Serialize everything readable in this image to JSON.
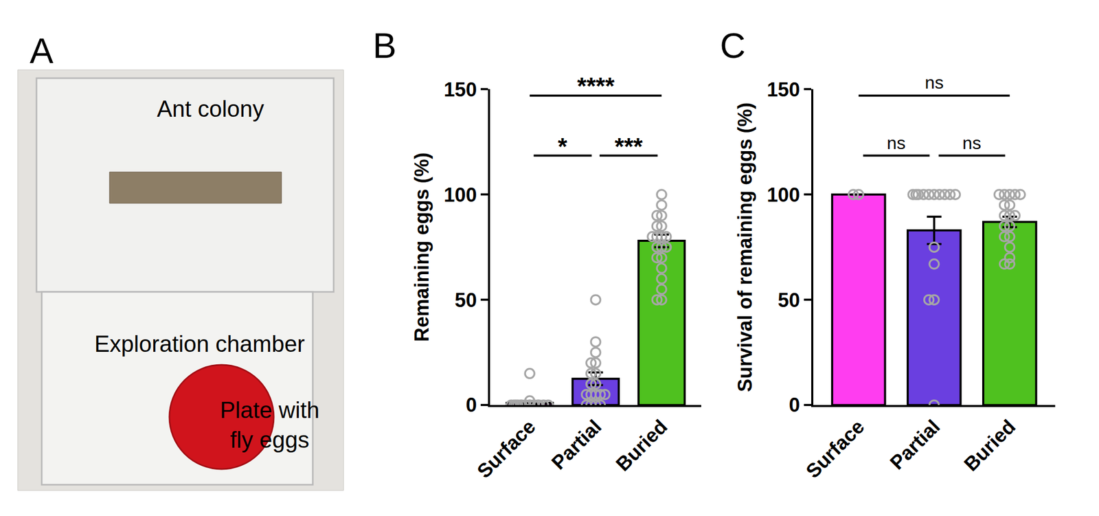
{
  "photo": {
    "panel": "A",
    "labels": [
      {
        "lines": [
          "Ant colony"
        ]
      },
      {
        "lines": [
          "Exploration chamber"
        ]
      },
      {
        "lines": [
          "Plate with",
          "fly eggs"
        ]
      }
    ]
  },
  "chart_data": [
    {
      "type": "bar",
      "panel": "B",
      "y_label": "Remaining eggs (%)",
      "categories": [
        "Surface",
        "Partial",
        "Buried"
      ],
      "colors": [
        "#ff3df0",
        "#6a3fe0",
        "#4fc11f"
      ],
      "values": [
        1,
        12.5,
        78
      ],
      "errors": [
        0.8,
        3,
        3
      ],
      "points": [
        [
          0,
          0,
          0,
          0,
          0,
          0,
          0,
          0,
          0,
          0,
          0,
          0,
          0,
          0,
          0,
          0,
          2,
          15
        ],
        [
          50,
          30,
          25,
          20,
          20,
          15,
          15,
          10,
          10,
          5,
          5,
          5,
          5,
          5,
          0,
          0,
          0,
          0
        ],
        [
          100,
          95,
          90,
          90,
          85,
          85,
          80,
          80,
          80,
          80,
          75,
          75,
          75,
          70,
          70,
          65,
          60,
          55,
          50,
          50
        ]
      ],
      "ylim": [
        0,
        150
      ],
      "yticks": [
        0,
        50,
        100,
        150
      ],
      "comparisons": [
        {
          "from": "Surface",
          "to": "Partial",
          "text": "*"
        },
        {
          "from": "Partial",
          "to": "Buried",
          "text": "***"
        },
        {
          "from": "Surface",
          "to": "Buried",
          "text": "****"
        }
      ]
    },
    {
      "type": "bar",
      "panel": "C",
      "y_label": "Survival of remaining eggs (%)",
      "categories": [
        "Surface",
        "Partial",
        "Buried"
      ],
      "colors": [
        "#ff3df0",
        "#6a3fe0",
        "#4fc11f"
      ],
      "values": [
        100,
        83,
        87
      ],
      "errors": [
        0,
        6.5,
        2.5
      ],
      "points": [
        [
          100,
          100
        ],
        [
          100,
          100,
          100,
          100,
          100,
          100,
          100,
          100,
          100,
          100,
          75,
          67,
          50,
          50,
          0
        ],
        [
          100,
          100,
          100,
          100,
          100,
          95,
          95,
          90,
          90,
          90,
          85,
          85,
          80,
          80,
          75,
          70,
          67,
          67
        ]
      ],
      "ylim": [
        0,
        150
      ],
      "yticks": [
        0,
        50,
        100,
        150
      ],
      "comparisons": [
        {
          "from": "Surface",
          "to": "Partial",
          "text": "ns"
        },
        {
          "from": "Partial",
          "to": "Buried",
          "text": "ns"
        },
        {
          "from": "Surface",
          "to": "Buried",
          "text": "ns"
        }
      ]
    }
  ]
}
